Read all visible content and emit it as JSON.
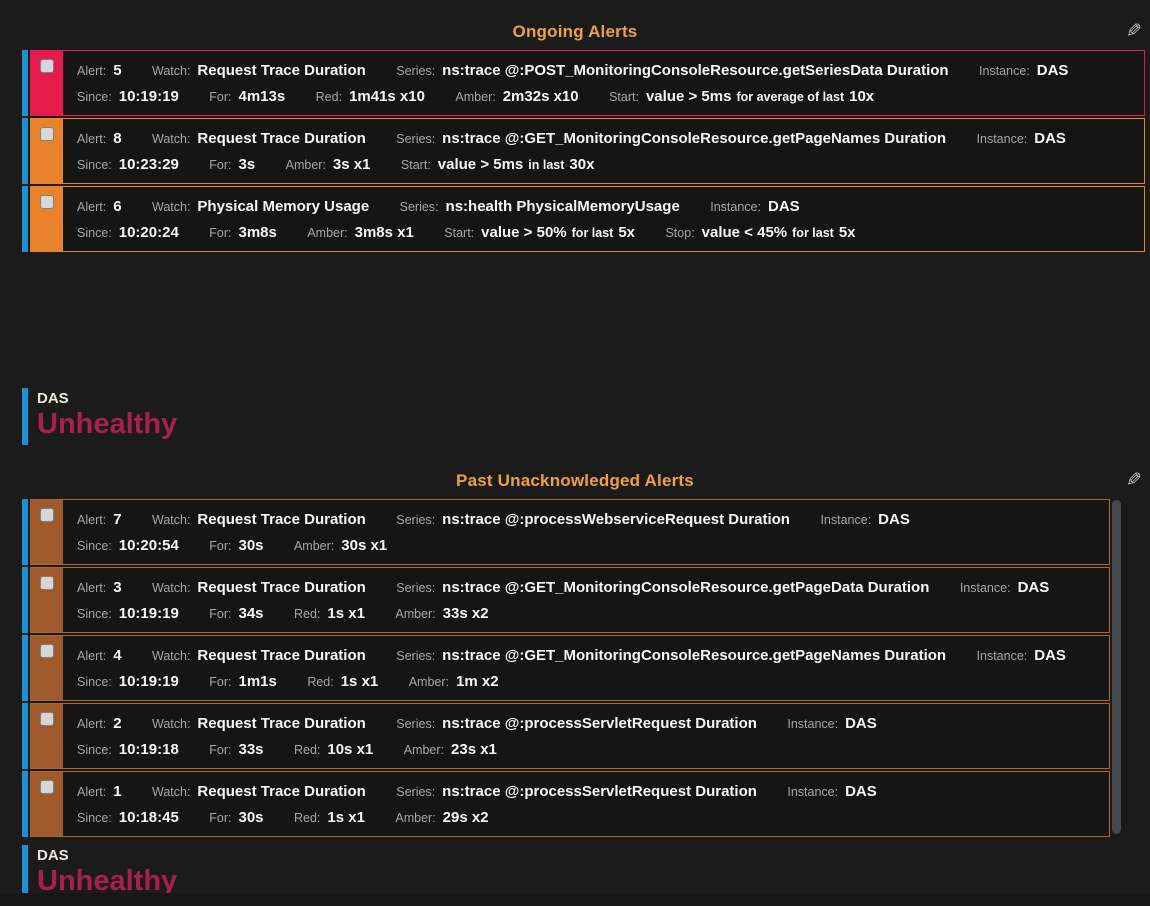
{
  "colors": {
    "accent": "#efa13a",
    "instance_bar_blue": "#1e8fd2",
    "red": "#e51a4d",
    "amber": "#e8832c",
    "past_block": "#9e5a2b",
    "past_border": "#a96634",
    "unhealthy": "#a9204b",
    "cream": "#ece7da"
  },
  "icons": {
    "edit": "✎"
  },
  "labels": {
    "alert": "Alert:",
    "watch": "Watch:",
    "series": "Series:",
    "instance": "Instance:",
    "since": "Since:",
    "for": "For:",
    "red": "Red:",
    "amber": "Amber:",
    "start": "Start:",
    "stop": "Stop:"
  },
  "sections": [
    {
      "title": "Ongoing Alerts",
      "alerts": [
        {
          "severity": "red",
          "alert": "5",
          "watch": "Request Trace Duration",
          "series": "ns:trace @:POST_MonitoringConsoleResource.getSeriesData Duration",
          "instance": "DAS",
          "since": "10:19:19",
          "for": "4m13s",
          "red": "1m41s x10",
          "amber": "2m32s x10",
          "start": {
            "cond": "value > 5ms",
            "mid": "for average of last",
            "count": "10x"
          }
        },
        {
          "severity": "amber",
          "alert": "8",
          "watch": "Request Trace Duration",
          "series": "ns:trace @:GET_MonitoringConsoleResource.getPageNames Duration",
          "instance": "DAS",
          "since": "10:23:29",
          "for": "3s",
          "amber": "3s x1",
          "start": {
            "cond": "value > 5ms",
            "mid": "in last",
            "count": "30x"
          }
        },
        {
          "severity": "amber",
          "alert": "6",
          "watch": "Physical Memory Usage",
          "series": "ns:health PhysicalMemoryUsage",
          "instance": "DAS",
          "since": "10:20:24",
          "for": "3m8s",
          "amber": "3m8s x1",
          "start": {
            "cond": "value > 50%",
            "mid": "for last",
            "count": "5x"
          },
          "stop": {
            "cond": "value < 45%",
            "mid": "for last",
            "count": "5x"
          }
        }
      ]
    },
    {
      "title": "Past Unacknowledged Alerts",
      "alerts": [
        {
          "severity": "past",
          "alert": "7",
          "watch": "Request Trace Duration",
          "series": "ns:trace @:processWebserviceRequest Duration",
          "instance": "DAS",
          "since": "10:20:54",
          "for": "30s",
          "amber": "30s x1"
        },
        {
          "severity": "past",
          "alert": "3",
          "watch": "Request Trace Duration",
          "series": "ns:trace @:GET_MonitoringConsoleResource.getPageData Duration",
          "instance": "DAS",
          "since": "10:19:19",
          "for": "34s",
          "red": "1s x1",
          "amber": "33s x2"
        },
        {
          "severity": "past",
          "alert": "4",
          "watch": "Request Trace Duration",
          "series": "ns:trace @:GET_MonitoringConsoleResource.getPageNames Duration",
          "instance": "DAS",
          "since": "10:19:19",
          "for": "1m1s",
          "red": "1s x1",
          "amber": "1m x2"
        },
        {
          "severity": "past",
          "alert": "2",
          "watch": "Request Trace Duration",
          "series": "ns:trace @:processServletRequest Duration",
          "instance": "DAS",
          "since": "10:19:18",
          "for": "33s",
          "red": "10s x1",
          "amber": "23s x1"
        },
        {
          "severity": "past",
          "alert": "1",
          "watch": "Request Trace Duration",
          "series": "ns:trace @:processServletRequest Duration",
          "instance": "DAS",
          "since": "10:18:45",
          "for": "30s",
          "red": "1s x1",
          "amber": "29s x2"
        }
      ]
    }
  ],
  "status_blocks": [
    {
      "instance": "DAS",
      "status": "Unhealthy"
    },
    {
      "instance": "DAS",
      "status": "Unhealthy"
    }
  ]
}
